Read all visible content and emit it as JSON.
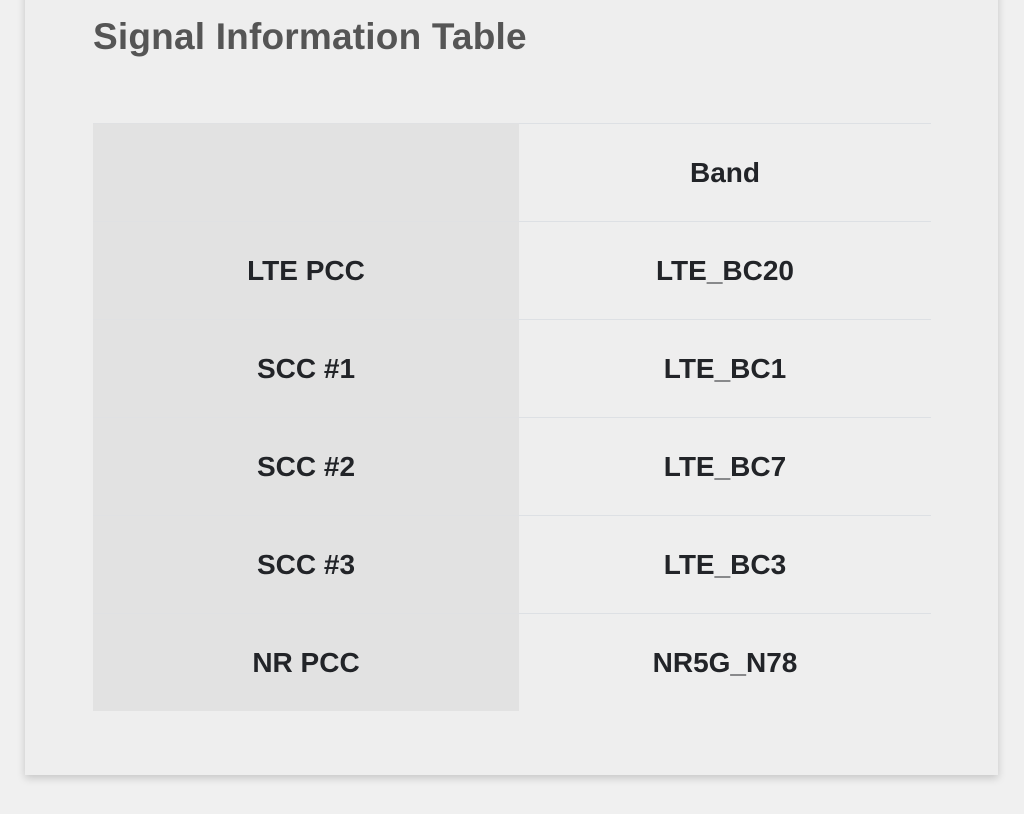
{
  "title": "Signal Information Table",
  "table": {
    "header": {
      "label": "",
      "band": "Band"
    },
    "rows": [
      {
        "label": "LTE PCC",
        "band": "LTE_BC20"
      },
      {
        "label": "SCC #1",
        "band": "LTE_BC1"
      },
      {
        "label": "SCC #2",
        "band": "LTE_BC7"
      },
      {
        "label": "SCC #3",
        "band": "LTE_BC3"
      },
      {
        "label": "NR PCC",
        "band": "NR5G_N78"
      }
    ]
  }
}
